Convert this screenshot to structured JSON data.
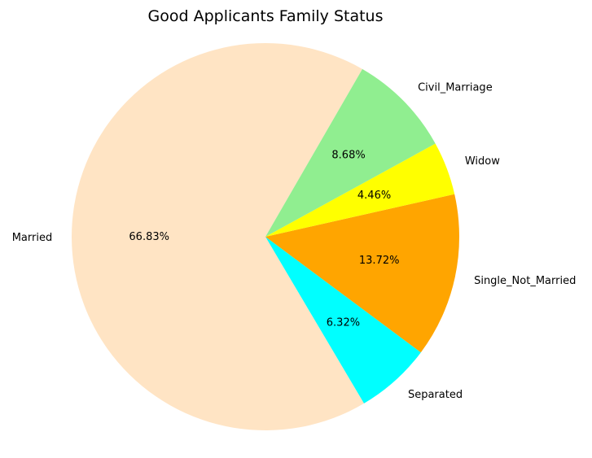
{
  "chart_data": {
    "type": "pie",
    "title": "Good Applicants Family Status",
    "slices": [
      {
        "label": "Married",
        "value": 66.83,
        "pct_label": "66.83%",
        "color": "#FFE4C4"
      },
      {
        "label": "Separated",
        "value": 6.32,
        "pct_label": "6.32%",
        "color": "#00FFFF"
      },
      {
        "label": "Single_Not_Married",
        "value": 13.72,
        "pct_label": "13.72%",
        "color": "#FFA500"
      },
      {
        "label": "Widow",
        "value": 4.46,
        "pct_label": "4.46%",
        "color": "#FFFF00"
      },
      {
        "label": "Civil_Marriage",
        "value": 8.68,
        "pct_label": "8.68%",
        "color": "#90EE90"
      }
    ],
    "start_angle_deg": 60,
    "direction": "counterclockwise",
    "legend": "none"
  }
}
